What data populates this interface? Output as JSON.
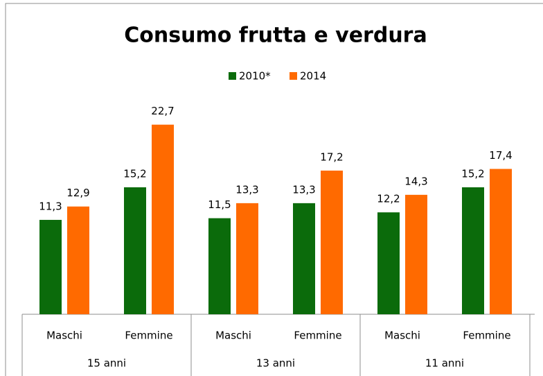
{
  "chart_data": {
    "type": "bar",
    "title": "Consumo frutta e verdura",
    "categories": [
      "Maschi",
      "Femmine",
      "Maschi",
      "Femmine",
      "Maschi",
      "Femmine"
    ],
    "groups": [
      "15 anni",
      "13 anni",
      "11 anni"
    ],
    "series": [
      {
        "name": "2010*",
        "color": "#0b6b0b",
        "values": [
          11.3,
          15.2,
          11.5,
          13.3,
          12.2,
          15.2
        ],
        "value_labels": [
          "11,3",
          "15,2",
          "11,5",
          "13,3",
          "12,2",
          "15,2"
        ]
      },
      {
        "name": "2014",
        "color": "#ff6a00",
        "values": [
          12.9,
          22.7,
          13.3,
          17.2,
          14.3,
          17.4
        ],
        "value_labels": [
          "12,9",
          "22,7",
          "13,3",
          "17,2",
          "14,3",
          "17,4"
        ]
      }
    ],
    "ylim": [
      0,
      25
    ]
  }
}
